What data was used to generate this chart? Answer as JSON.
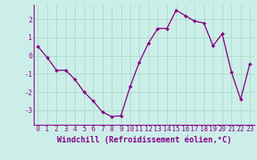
{
  "x": [
    0,
    1,
    2,
    3,
    4,
    5,
    6,
    7,
    8,
    9,
    10,
    11,
    12,
    13,
    14,
    15,
    16,
    17,
    18,
    19,
    20,
    21,
    22,
    23
  ],
  "y": [
    0.5,
    -0.1,
    -0.8,
    -0.8,
    -1.3,
    -2.0,
    -2.5,
    -3.1,
    -3.35,
    -3.3,
    -1.7,
    -0.35,
    0.7,
    1.5,
    1.5,
    2.5,
    2.2,
    1.9,
    1.8,
    0.55,
    1.2,
    -0.9,
    -2.4,
    -0.45
  ],
  "line_color": "#880088",
  "marker": "D",
  "marker_size": 2.0,
  "linewidth": 1.0,
  "bg_color": "#cceee8",
  "grid_color": "#aaddcc",
  "xlabel": "Windchill (Refroidissement éolien,°C)",
  "xlabel_color": "#880088",
  "xlabel_fontsize": 7,
  "tick_color": "#880088",
  "tick_fontsize": 6,
  "ylim": [
    -3.8,
    2.8
  ],
  "xlim": [
    -0.5,
    23.5
  ],
  "yticks": [
    -3,
    -2,
    -1,
    0,
    1,
    2
  ],
  "xticks": [
    0,
    1,
    2,
    3,
    4,
    5,
    6,
    7,
    8,
    9,
    10,
    11,
    12,
    13,
    14,
    15,
    16,
    17,
    18,
    19,
    20,
    21,
    22,
    23
  ]
}
